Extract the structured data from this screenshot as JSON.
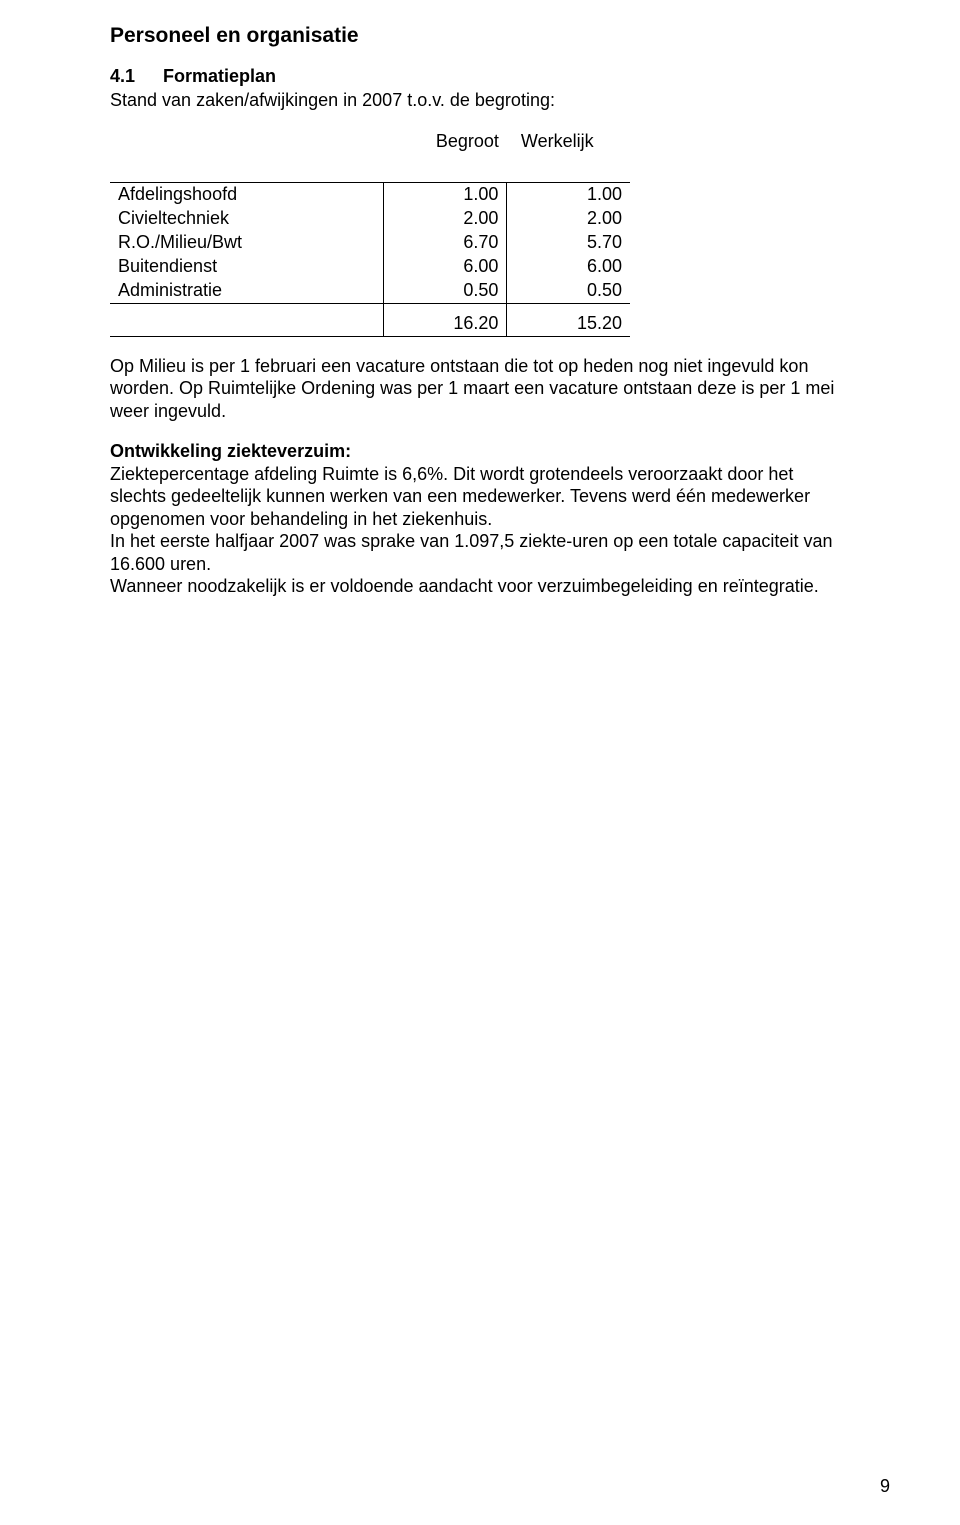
{
  "section_title": "Personeel en organisatie",
  "sub_number": "4.1",
  "sub_title": "Formatieplan",
  "intro_line": "Stand van zaken/afwijkingen in 2007 t.o.v. de begroting:",
  "table": {
    "head_begroot": "Begroot",
    "head_werkelijk": "Werkelijk",
    "rows": [
      {
        "label": "Afdelingshoofd",
        "begroot": "1.00",
        "werkelijk": "1.00"
      },
      {
        "label": "Civieltechniek",
        "begroot": "2.00",
        "werkelijk": "2.00"
      },
      {
        "label": "R.O./Milieu/Bwt",
        "begroot": "6.70",
        "werkelijk": "5.70"
      },
      {
        "label": "Buitendienst",
        "begroot": "6.00",
        "werkelijk": "6.00"
      },
      {
        "label": "Administratie",
        "begroot": "0.50",
        "werkelijk": "0.50"
      }
    ],
    "total": {
      "begroot": "16.20",
      "werkelijk": "15.20"
    }
  },
  "para1": "Op Milieu is per 1 februari een vacature ontstaan die tot op heden nog niet ingevuld kon worden. Op Ruimtelijke Ordening was per 1 maart een vacature ontstaan deze is per 1 mei weer ingevuld.",
  "ziekte_heading": "Ontwikkeling ziekteverzuim:",
  "para2a": "Ziektepercentage afdeling Ruimte is 6,6%. Dit wordt grotendeels veroorzaakt door het slechts gedeeltelijk kunnen werken van een medewerker. Tevens werd één medewerker opgenomen voor behandeling in het ziekenhuis.",
  "para2b": "In het eerste halfjaar 2007 was sprake van 1.097,5 ziekte-uren op een totale capaciteit van 16.600 uren.",
  "para2c": "Wanneer noodzakelijk is er voldoende aandacht voor verzuimbegeleiding en reïntegratie.",
  "page_number": "9",
  "colors": {
    "text": "#000000",
    "background": "#ffffff",
    "border": "#000000"
  },
  "fonts": {
    "family": "Arial",
    "section_title_size_pt": 16,
    "body_size_pt": 13
  }
}
